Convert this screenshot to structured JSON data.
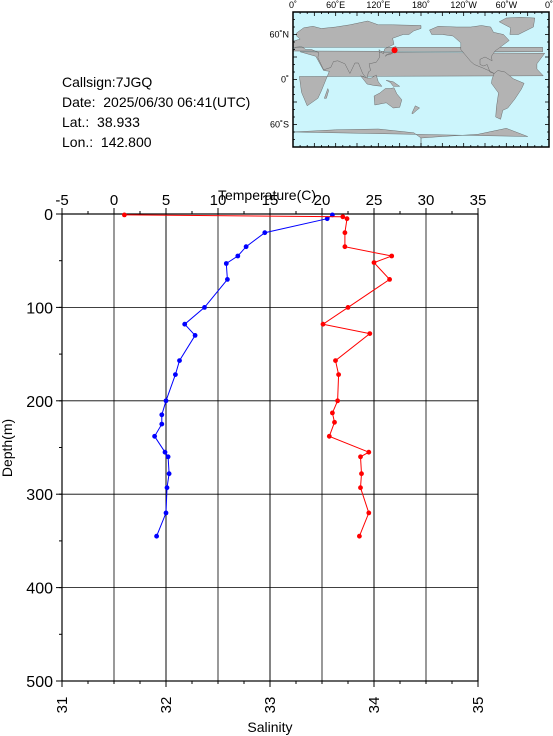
{
  "station": {
    "callsign_label": "Callsign:",
    "callsign": "7JGQ",
    "date_label": "Date:",
    "date": "2025/06/30 06:41(UTC)",
    "lat_label": "Lat.:",
    "lat": "38.933",
    "lon_label": "Lon.:",
    "lon": "142.800"
  },
  "map": {
    "top_ticks": [
      "0˚",
      "60˚E",
      "120˚E",
      "180˚",
      "120˚W",
      "60˚W",
      "0˚"
    ],
    "left_ticks": [
      "60˚N",
      "0˚",
      "60˚S"
    ],
    "ocean_color": "#ccf5fc",
    "land_color": "#b3b3b3",
    "marker_color": "#ff0000",
    "station_lon": 142.8,
    "station_lat": 38.933
  },
  "chart_data": {
    "type": "line",
    "title": "",
    "top_axis": {
      "label": "Temperature(C)",
      "range": [
        -5,
        35
      ],
      "ticks": [
        "-5",
        "0",
        "5",
        "10",
        "15",
        "20",
        "25",
        "30",
        "35"
      ]
    },
    "bottom_axis": {
      "label": "Salinity",
      "range": [
        31,
        35
      ],
      "ticks": [
        "31",
        "32",
        "33",
        "34",
        "35"
      ]
    },
    "y_axis": {
      "label": "Depth(m)",
      "range": [
        0,
        500
      ],
      "inverted": true,
      "ticks": [
        "0",
        "100",
        "200",
        "300",
        "400",
        "500"
      ]
    },
    "grid": true,
    "series": [
      {
        "color": "#0000ff",
        "axis": "temperature",
        "points": [
          [
            21.0,
            1
          ],
          [
            20.5,
            5
          ],
          [
            14.5,
            20
          ],
          [
            12.7,
            35
          ],
          [
            11.9,
            45
          ],
          [
            10.8,
            53
          ],
          [
            10.9,
            70
          ],
          [
            8.7,
            100
          ],
          [
            6.8,
            118
          ],
          [
            7.8,
            130
          ],
          [
            6.3,
            157
          ],
          [
            5.9,
            172
          ],
          [
            5.0,
            200
          ],
          [
            4.6,
            215
          ],
          [
            4.6,
            225
          ],
          [
            3.9,
            238
          ],
          [
            4.9,
            255
          ],
          [
            5.2,
            260
          ],
          [
            5.3,
            278
          ],
          [
            5.1,
            293
          ],
          [
            5.0,
            320
          ],
          [
            4.1,
            345
          ]
        ]
      },
      {
        "color": "#ff0000",
        "axis": "salinity",
        "points": [
          [
            31.6,
            1
          ],
          [
            33.7,
            3
          ],
          [
            33.74,
            5
          ],
          [
            33.72,
            20
          ],
          [
            33.72,
            35
          ],
          [
            34.17,
            45
          ],
          [
            34.0,
            52
          ],
          [
            34.15,
            70
          ],
          [
            33.75,
            100
          ],
          [
            33.51,
            118
          ],
          [
            33.96,
            128
          ],
          [
            33.63,
            157
          ],
          [
            33.66,
            172
          ],
          [
            33.65,
            200
          ],
          [
            33.6,
            213
          ],
          [
            33.62,
            223
          ],
          [
            33.57,
            238
          ],
          [
            33.95,
            255
          ],
          [
            33.87,
            260
          ],
          [
            33.88,
            278
          ],
          [
            33.87,
            293
          ],
          [
            33.95,
            320
          ],
          [
            33.86,
            345
          ]
        ]
      }
    ]
  }
}
